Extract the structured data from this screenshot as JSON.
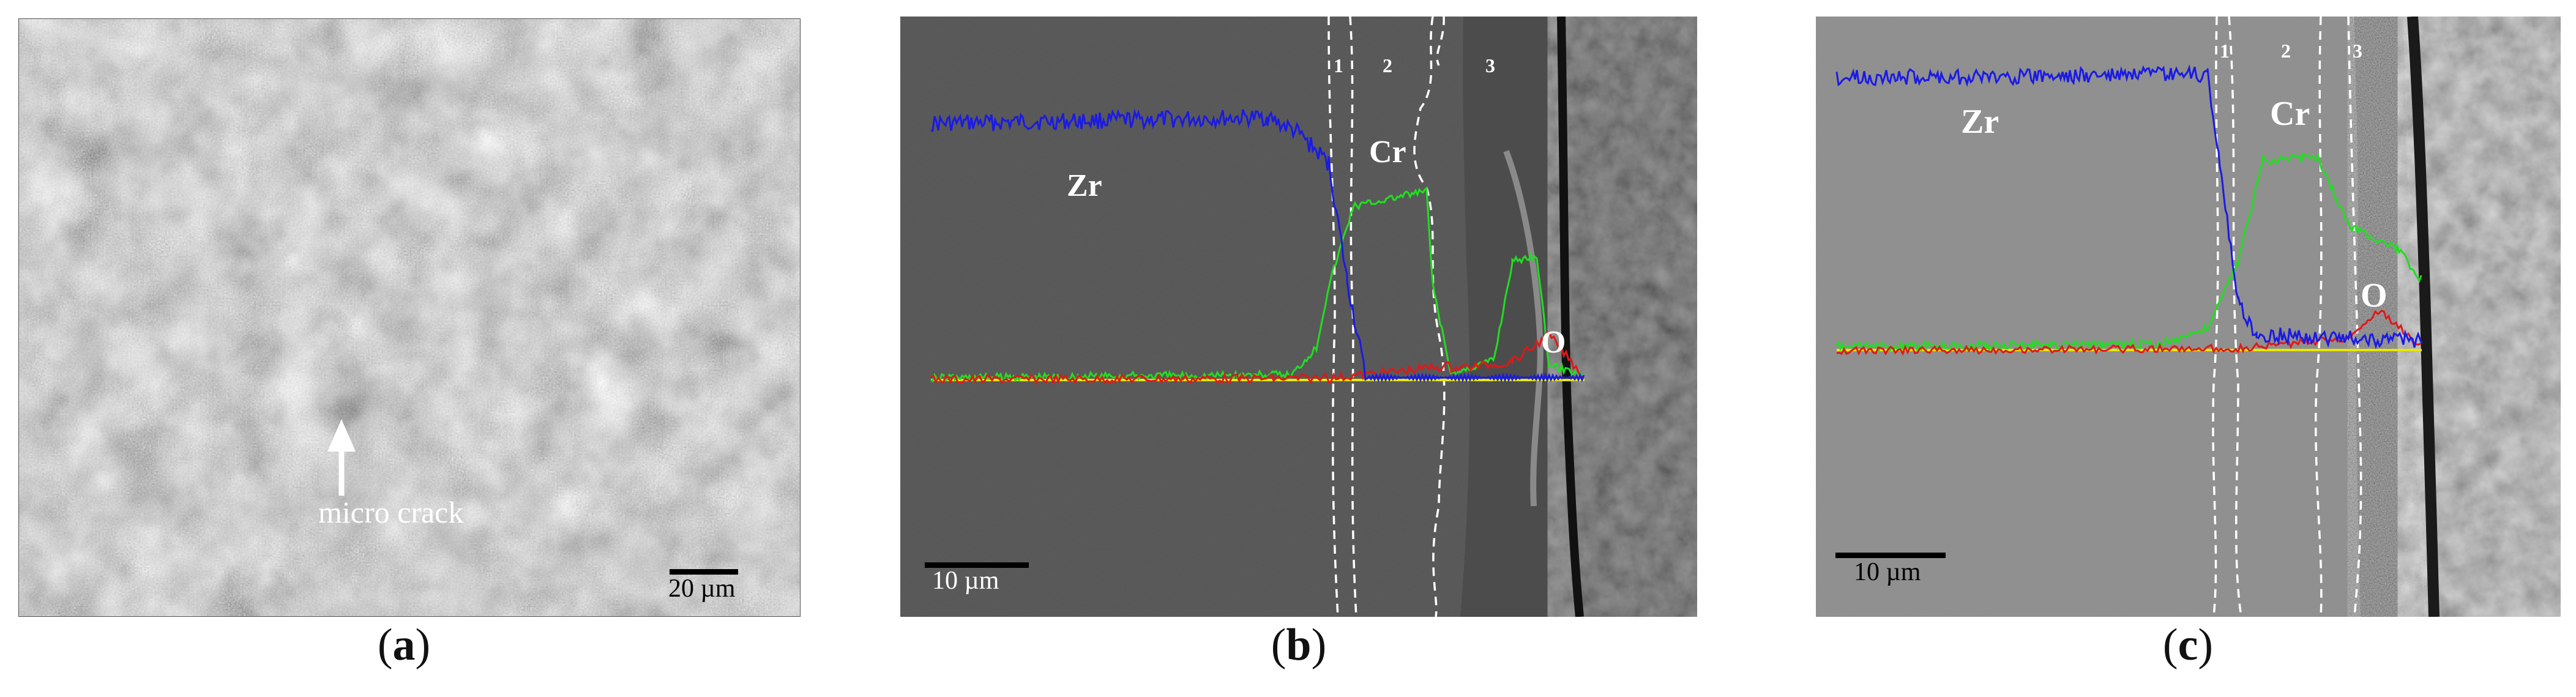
{
  "panels": {
    "a": {
      "caption_letter": "a",
      "annotation": "micro crack",
      "scale_bar": "20 µm"
    },
    "b": {
      "caption_letter": "b",
      "zones": [
        "1",
        "2",
        "3"
      ],
      "elements": [
        "Zr",
        "Cr",
        "O"
      ],
      "scale_bar": "10 µm"
    },
    "c": {
      "caption_letter": "c",
      "zones": [
        "1",
        "2",
        "3"
      ],
      "elements": [
        "Zr",
        "Cr",
        "O"
      ],
      "scale_bar": "10 µm"
    }
  },
  "colors": {
    "Zr": "#1a1ae6",
    "Cr": "#22dd22",
    "O": "#e01818",
    "baseline": "#e8e800"
  }
}
